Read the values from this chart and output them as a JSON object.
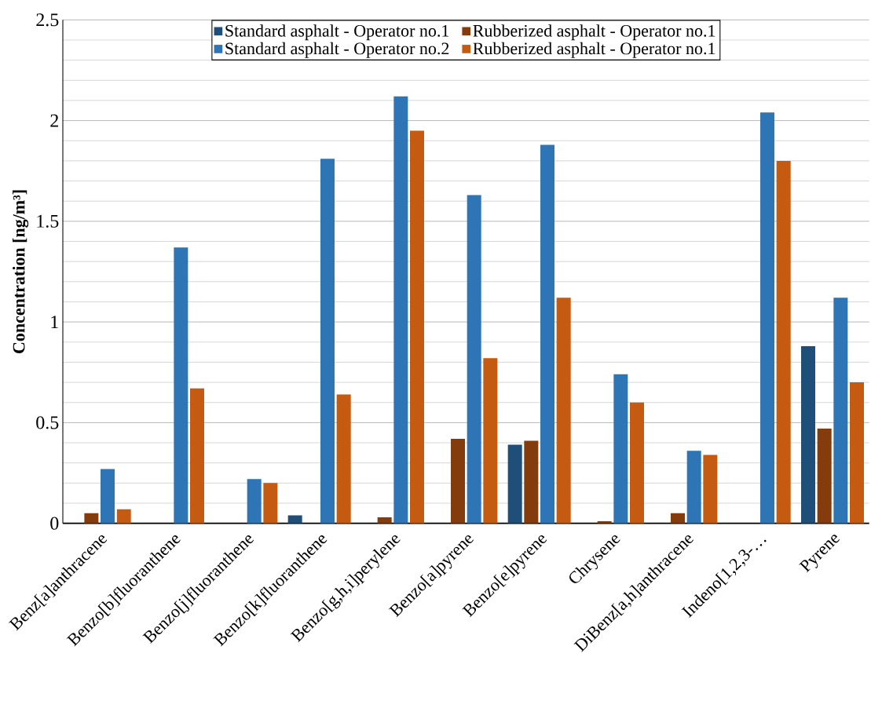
{
  "chart_data": {
    "type": "bar",
    "ylabel": "Concentration [ng/m³]",
    "categories": [
      "Benz[a]anthracene",
      "Benzo[b]fluoranthene",
      "Benzo[j]fluoranthene",
      "Benzo[k]fluoranthene",
      "Benzo[g,h,i]perylene",
      "Benzo[a]pyrene",
      "Benzo[e]pyrene",
      "Chrysene",
      "DiBenz[a,h]anthracene",
      "Indeno[1,2,3-…",
      "Pyrene"
    ],
    "series": [
      {
        "name": "Standard asphalt - Operator no.1",
        "color": "#1f4e79",
        "values": [
          null,
          null,
          null,
          0.04,
          null,
          null,
          0.39,
          null,
          null,
          null,
          0.88
        ]
      },
      {
        "name": "Rubberized asphalt - Operator no.1",
        "color": "#843c0c",
        "values": [
          0.05,
          null,
          null,
          null,
          0.03,
          0.42,
          0.41,
          0.01,
          0.05,
          null,
          0.47
        ]
      },
      {
        "name": "Standard asphalt - Operator no.2",
        "color": "#2e75b6",
        "values": [
          0.27,
          1.37,
          0.22,
          1.81,
          2.12,
          1.63,
          1.88,
          0.74,
          0.36,
          2.04,
          1.12
        ]
      },
      {
        "name": "Rubberized asphalt - Operator no.1",
        "color": "#c55a11",
        "values": [
          0.07,
          0.67,
          0.2,
          0.64,
          1.95,
          0.82,
          1.12,
          0.6,
          0.34,
          1.8,
          0.7
        ]
      }
    ],
    "ylim": [
      0,
      2.5
    ],
    "yticks": [
      0,
      0.5,
      1,
      1.5,
      2,
      2.5
    ],
    "grid": "y",
    "legend": "top"
  }
}
